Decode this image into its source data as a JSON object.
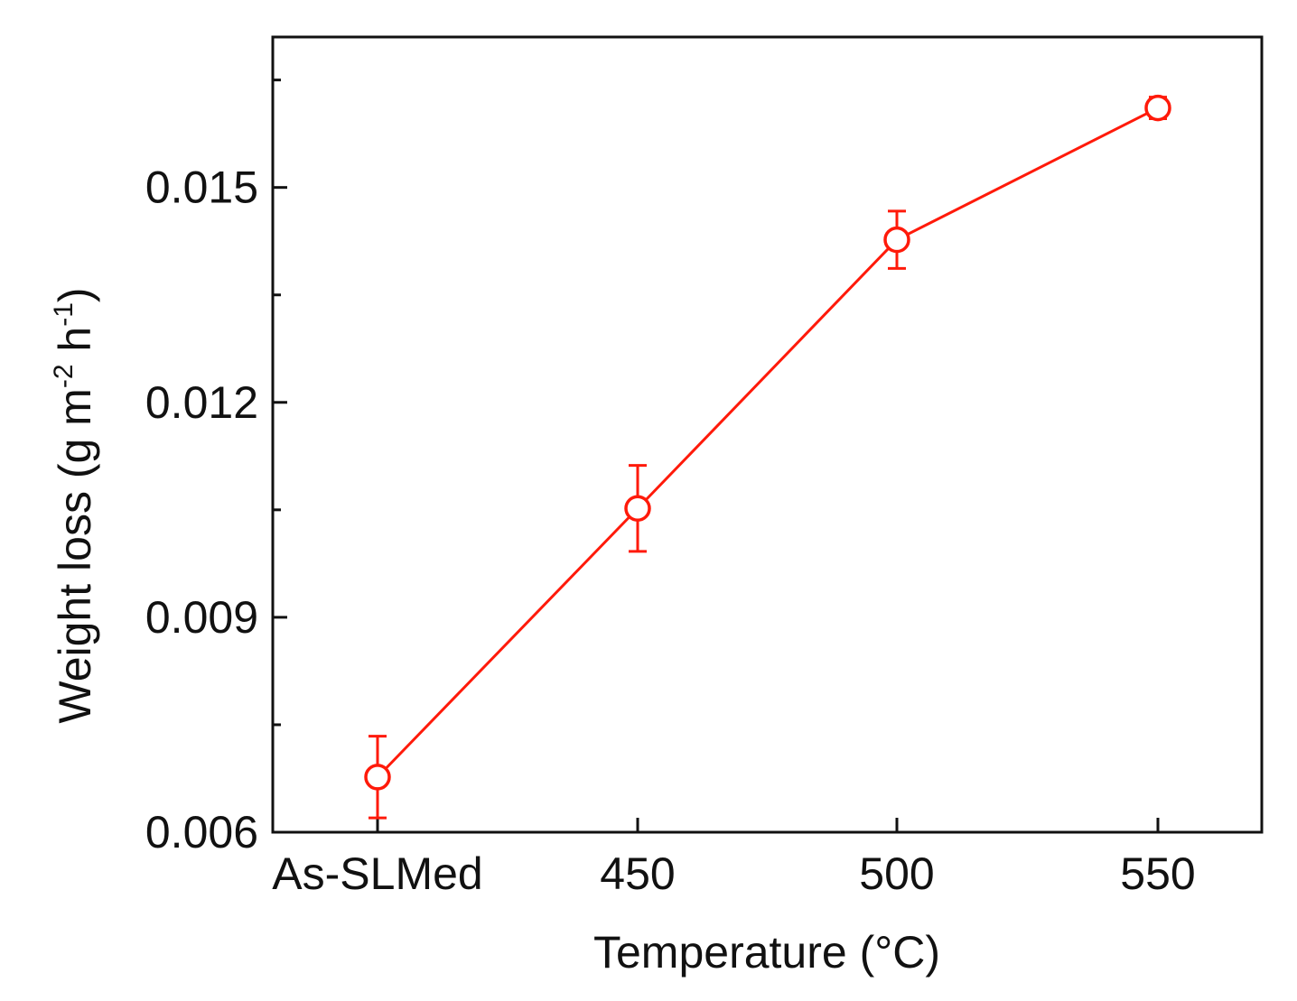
{
  "chart_data": {
    "type": "line",
    "title": "",
    "xlabel": "Temperature (°C)",
    "ylabel_main": "Weight loss (g m",
    "ylabel_sup1": "-2",
    "ylabel_mid": " h",
    "ylabel_sup2": "-1",
    "ylabel_end": ")",
    "categories": [
      "As-SLMed",
      "450",
      "500",
      "550"
    ],
    "series": [
      {
        "name": "Weight loss",
        "color": "#ff1a0a",
        "marker": "open-circle",
        "values": [
          0.00677,
          0.01052,
          0.01427,
          0.01611
        ],
        "errors": [
          0.00057,
          0.0006,
          0.0004,
          0.00015
        ]
      }
    ],
    "ylim": [
      0.006,
      0.0171
    ],
    "yticks": [
      0.006,
      0.009,
      0.012,
      0.015
    ],
    "ytick_labels": [
      "0.006",
      "0.009",
      "0.012",
      "0.015"
    ],
    "y_minor_step": 0.0015,
    "grid": false,
    "legend": "none"
  }
}
